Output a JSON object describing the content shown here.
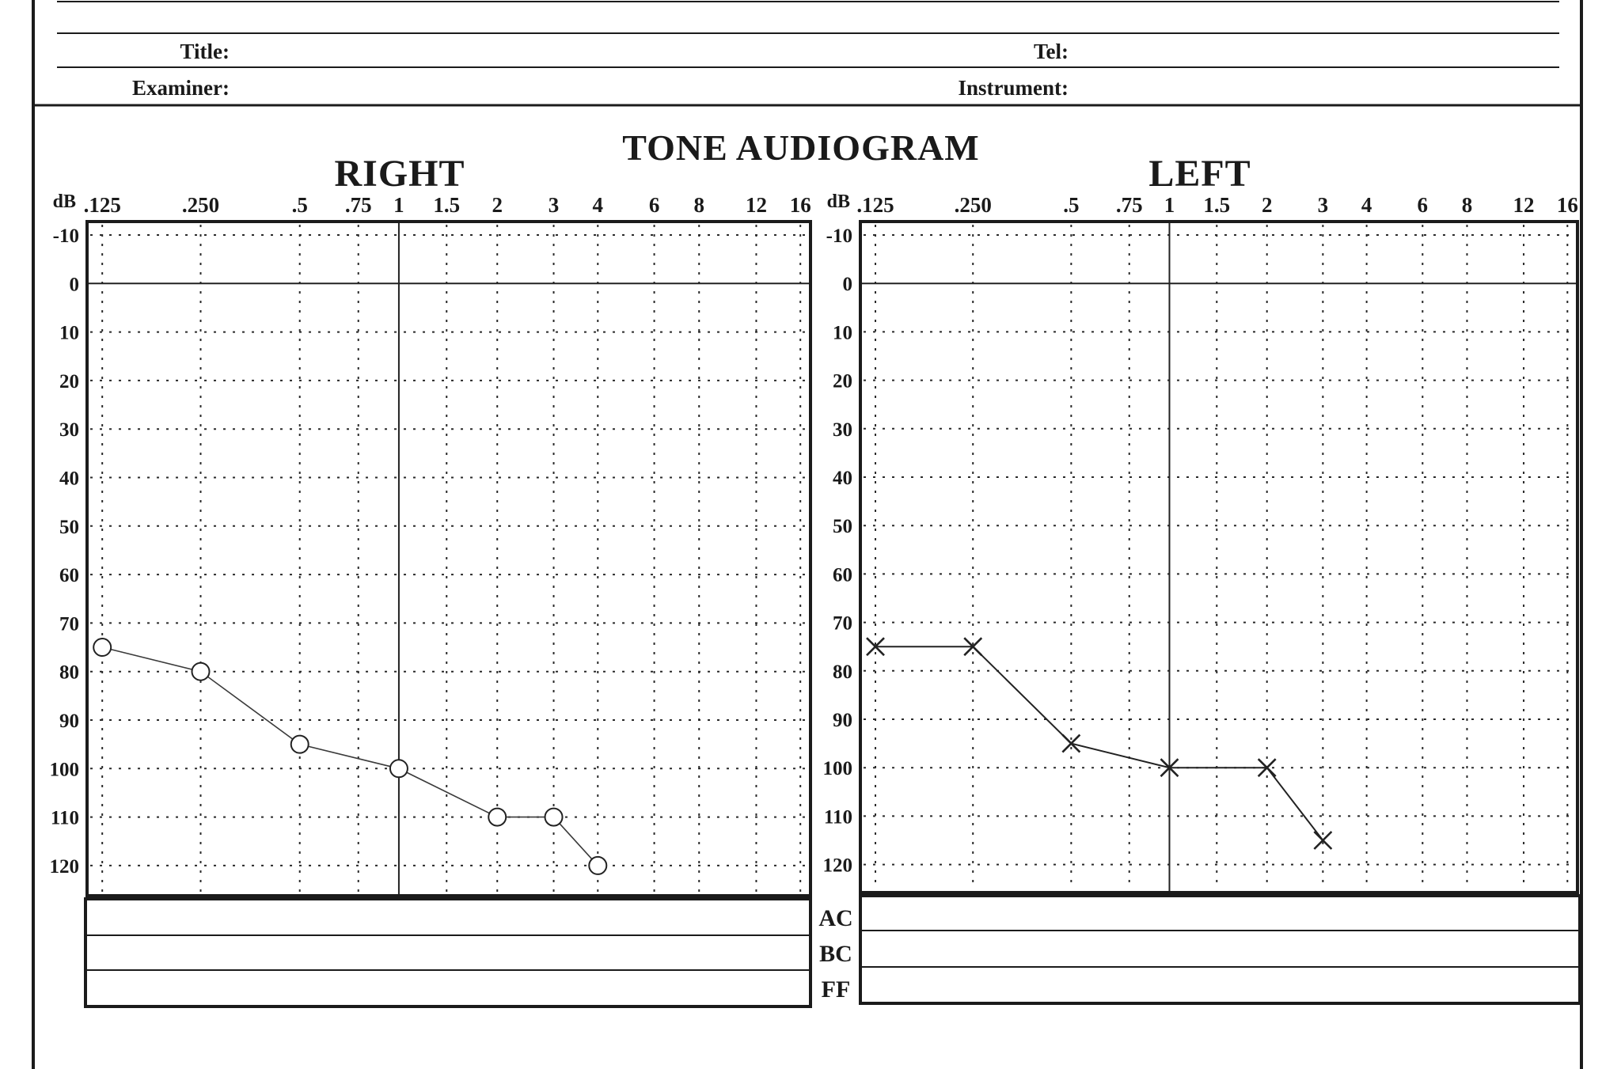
{
  "header": {
    "title_label": "Title:",
    "tel_label": "Tel:",
    "examiner_label": "Examiner:",
    "instrument_label": "Instrument:"
  },
  "main_title": "TONE AUDIOGRAM",
  "db_unit": "dB",
  "frequency_labels": [
    ".125",
    ".250",
    ".5",
    ".75",
    "1",
    "1.5",
    "2",
    "3",
    "4",
    "6",
    "8",
    "12",
    "16"
  ],
  "db_labels": [
    "-10",
    "0",
    "10",
    "20",
    "30",
    "40",
    "50",
    "60",
    "70",
    "80",
    "90",
    "100",
    "110",
    "120"
  ],
  "legend": {
    "ac": "AC",
    "bc": "BC",
    "ff": "FF"
  },
  "chart_data": [
    {
      "type": "line",
      "title": "RIGHT",
      "symbol": "circle",
      "xlabel": "",
      "ylabel": "dB",
      "x_scale": "log",
      "y_axis_inverted": true,
      "ylim": [
        -10,
        120
      ],
      "grid": true,
      "x": [
        0.125,
        0.25,
        0.5,
        1,
        2,
        3,
        4
      ],
      "y": [
        75,
        80,
        95,
        100,
        110,
        110,
        120
      ]
    },
    {
      "type": "line",
      "title": "LEFT",
      "symbol": "cross",
      "xlabel": "",
      "ylabel": "dB",
      "x_scale": "log",
      "y_axis_inverted": true,
      "ylim": [
        -10,
        120
      ],
      "grid": true,
      "x": [
        0.125,
        0.25,
        0.5,
        1,
        2,
        3
      ],
      "y": [
        75,
        75,
        95,
        100,
        100,
        115
      ]
    }
  ]
}
